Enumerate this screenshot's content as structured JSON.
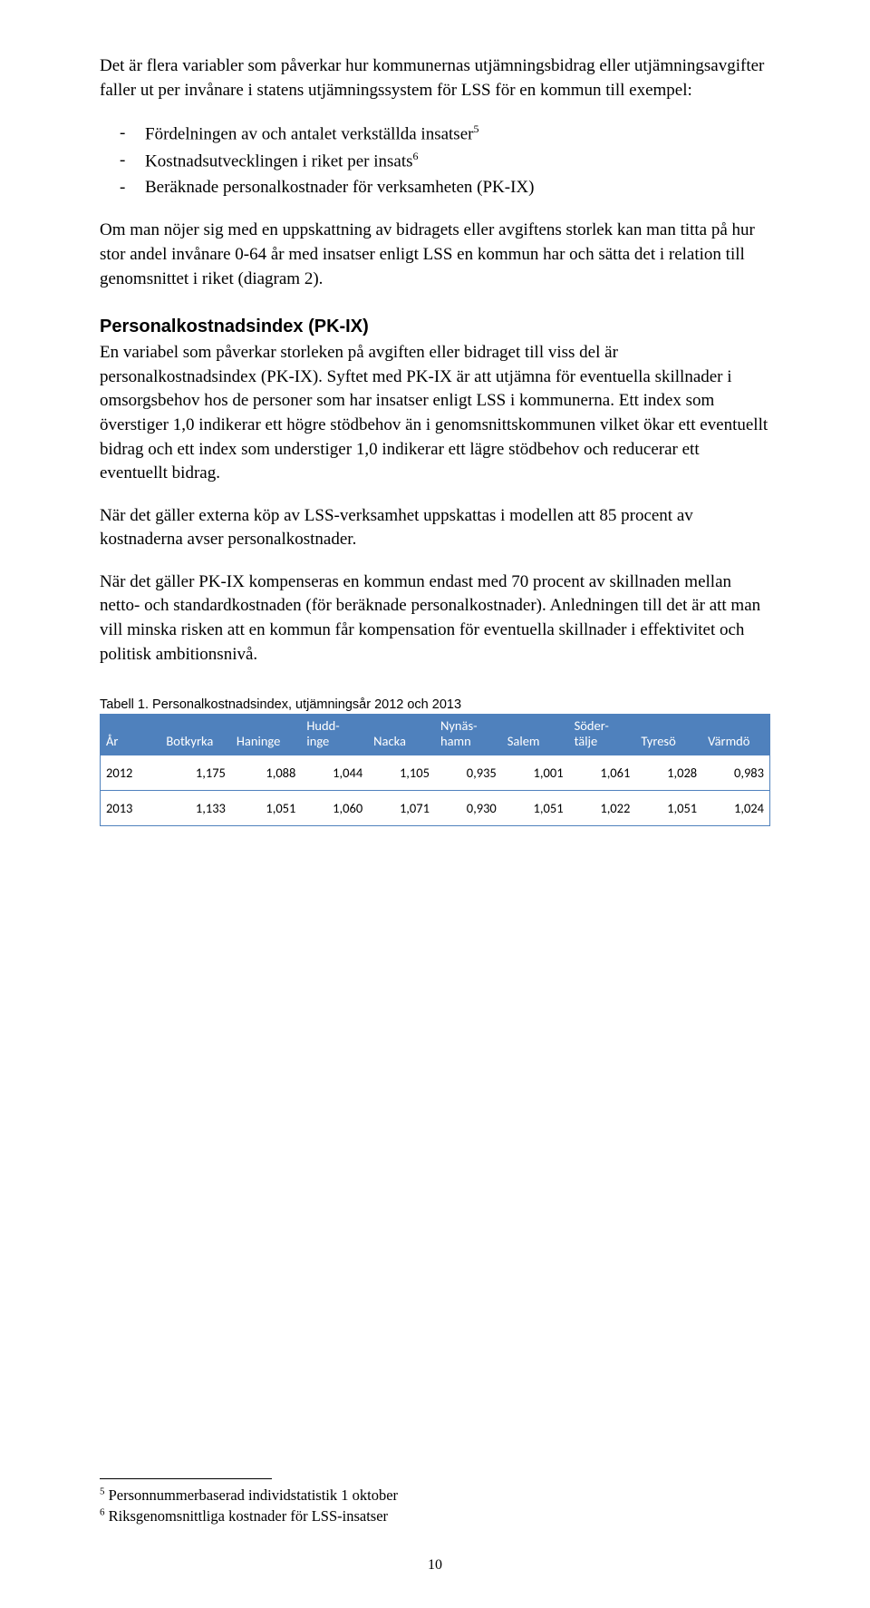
{
  "para1": "Det är flera variabler som påverkar hur kommunernas utjämningsbidrag eller utjämningsavgifter faller ut per invånare i statens utjämningssystem för LSS för en kommun till exempel:",
  "list": {
    "item1_pre": "Fördelningen av och antalet verkställda insatser",
    "item1_sup": "5",
    "item2_pre": "Kostnadsutvecklingen i riket per insats",
    "item2_sup": "6",
    "item3": "Beräknade personalkostnader för verksamheten (PK-IX)"
  },
  "para2": "Om man nöjer sig med en uppskattning av bidragets eller avgiftens storlek kan man titta på hur stor andel invånare 0-64 år med insatser enligt LSS en kommun har och sätta det i relation till genomsnittet i riket (diagram 2).",
  "heading": "Personalkostnadsindex (PK-IX)",
  "para3": "En variabel som påverkar storleken på avgiften eller bidraget till viss del är personalkostnadsindex (PK-IX). Syftet med PK-IX är att utjämna för eventuella skillnader i omsorgsbehov hos de personer som har insatser enligt LSS i kommunerna. Ett index som överstiger 1,0 indikerar ett högre stödbehov än i genomsnittskommunen vilket ökar ett eventuellt bidrag och ett index som understiger 1,0 indikerar ett lägre stödbehov och reducerar ett eventuellt bidrag.",
  "para4": "När det gäller externa köp av LSS-verksamhet uppskattas i modellen att 85 procent av kostnaderna avser personalkostnader.",
  "para5": "När det gäller PK-IX kompenseras en kommun endast med 70 procent av skillnaden mellan netto- och standardkostnaden (för beräknade personalkostnader). Anledningen till det är att man vill minska risken att en kommun får kompensation för eventuella skillnader i effektivitet och politisk ambitionsnivå.",
  "table": {
    "caption": "Tabell 1. Personalkostnadsindex, utjämningsår 2012 och 2013",
    "header_bg": "#4f81bd",
    "header_fg": "#ffffff",
    "border_color": "#4f81bd",
    "columns": {
      "c0": "År",
      "c1": "Botkyrka",
      "c2": "Haninge",
      "c3a": "Hudd-",
      "c3b": "inge",
      "c4": "Nacka",
      "c5a": "Nynäs-",
      "c5b": "hamn",
      "c6": "Salem",
      "c7a": "Söder-",
      "c7b": "tälje",
      "c8": "Tyresö",
      "c9": "Värmdö"
    },
    "rows": [
      {
        "year": "2012",
        "v": [
          "1,175",
          "1,088",
          "1,044",
          "1,105",
          "0,935",
          "1,001",
          "1,061",
          "1,028",
          "0,983"
        ]
      },
      {
        "year": "2013",
        "v": [
          "1,133",
          "1,051",
          "1,060",
          "1,071",
          "0,930",
          "1,051",
          "1,022",
          "1,051",
          "1,024"
        ]
      }
    ],
    "col_widths": [
      "9%",
      "10.5%",
      "10.5%",
      "10%",
      "10%",
      "10%",
      "10%",
      "10%",
      "10%",
      "10%"
    ]
  },
  "footnotes": {
    "f5_num": "5",
    "f5_text": " Personnummerbaserad individstatistik 1 oktober",
    "f6_num": "6",
    "f6_text": " Riksgenomsnittliga kostnader för LSS-insatser"
  },
  "page_number": "10"
}
